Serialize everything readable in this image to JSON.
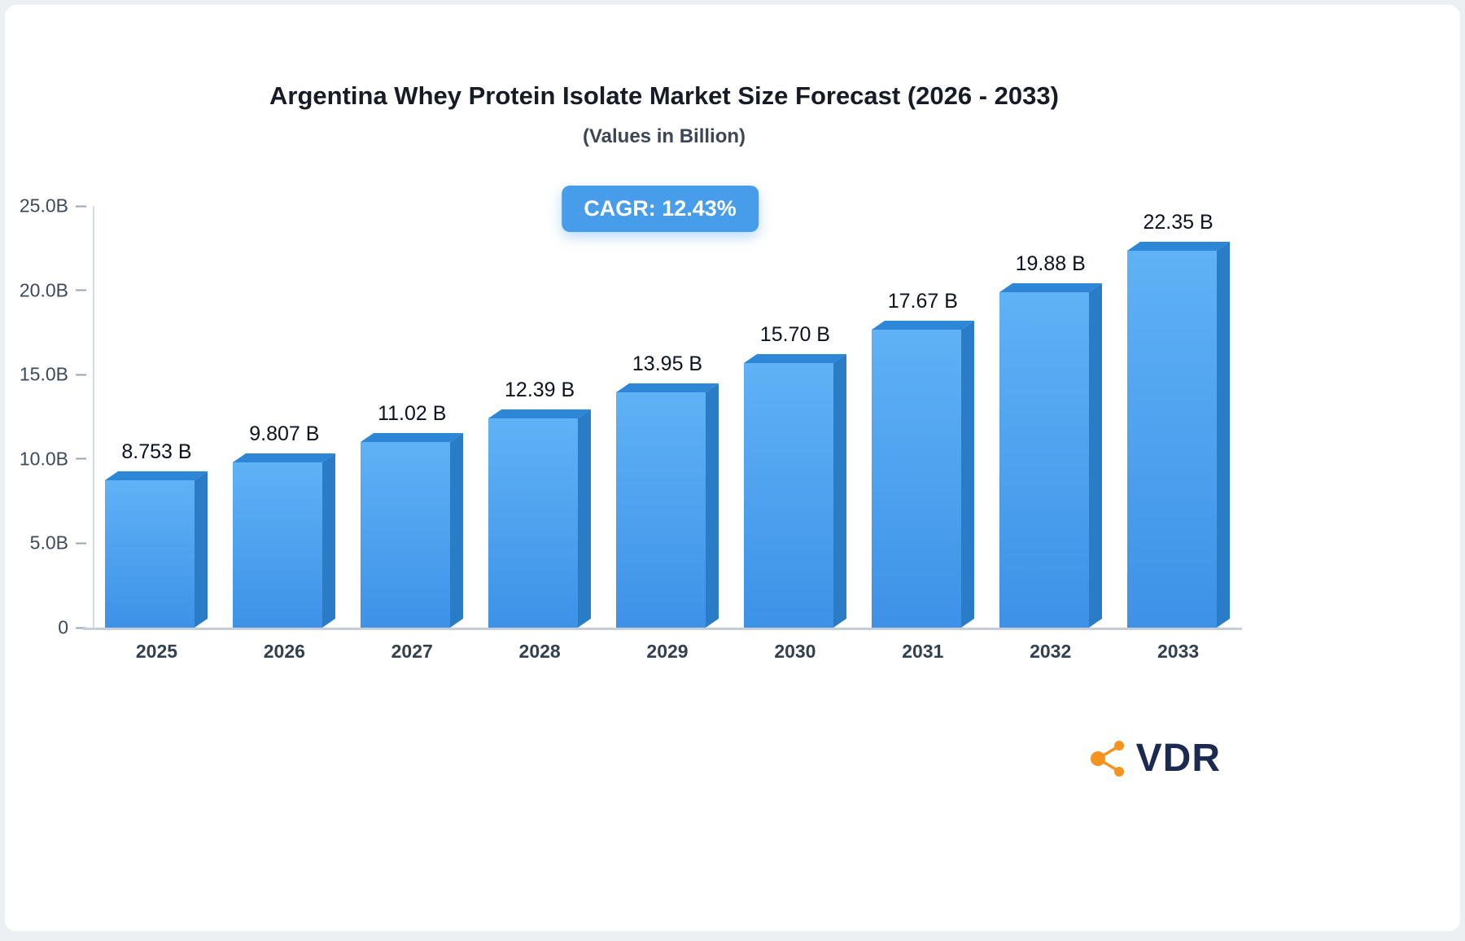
{
  "chart_data": {
    "type": "bar",
    "title": "Argentina Whey Protein Isolate Market Size Forecast (2026 - 2033)",
    "subtitle": "(Values in Billion)",
    "badge": "CAGR: 12.43%",
    "categories": [
      "2025",
      "2026",
      "2027",
      "2028",
      "2029",
      "2030",
      "2031",
      "2032",
      "2033"
    ],
    "values": [
      8.753,
      9.807,
      11.02,
      12.39,
      13.95,
      15.7,
      17.67,
      19.88,
      22.35
    ],
    "value_labels": [
      "8.753 B",
      "9.807 B",
      "11.02 B",
      "12.39 B",
      "13.95 B",
      "15.70 B",
      "17.67 B",
      "19.88 B",
      "22.35 B"
    ],
    "ylim": [
      0,
      25
    ],
    "yticks": [
      {
        "value": 25,
        "label": "25.0B"
      },
      {
        "value": 20,
        "label": "20.0B"
      },
      {
        "value": 15,
        "label": "15.0B"
      },
      {
        "value": 10,
        "label": "10.0B"
      },
      {
        "value": 5,
        "label": "5.0B"
      },
      {
        "value": 0,
        "label": "0"
      }
    ],
    "grid": false,
    "legend": false,
    "colors": {
      "bar_front_top": "#5fb2f5",
      "bar_front_bottom": "#3d92e8",
      "bar_side": "#2b7cc7",
      "bar_top": "#2e86d6",
      "badge_bg": "#489dea"
    }
  },
  "logo": {
    "text": "VDR",
    "icon_color": "#f6921e"
  }
}
